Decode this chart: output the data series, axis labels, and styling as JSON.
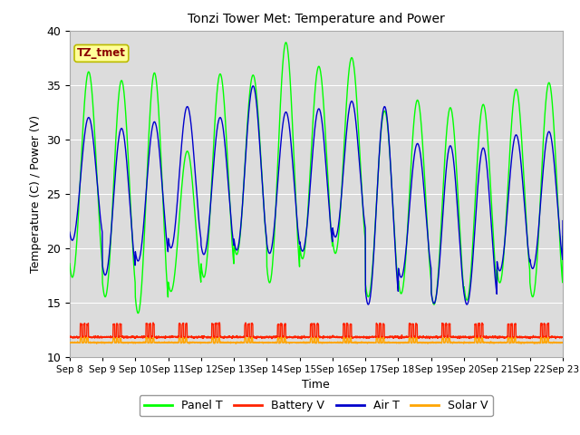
{
  "title": "Tonzi Tower Met: Temperature and Power",
  "xlabel": "Time",
  "ylabel": "Temperature (C) / Power (V)",
  "ylim": [
    10,
    40
  ],
  "annotation": "TZ_tmet",
  "annotation_color": "#8B0000",
  "annotation_bg": "#FFFF99",
  "bg_color": "#DCDCDC",
  "grid_color": "#FFFFFF",
  "series_colors": {
    "Panel T": "#00FF00",
    "Battery V": "#FF2200",
    "Air T": "#0000CC",
    "Solar V": "#FFA500"
  },
  "x_tick_labels": [
    "Sep 8",
    "Sep 9",
    "Sep 10",
    "Sep 11",
    "Sep 12",
    "Sep 13",
    "Sep 14",
    "Sep 15",
    "Sep 16",
    "Sep 17",
    "Sep 18",
    "Sep 19",
    "Sep 20",
    "Sep 21",
    "Sep 22",
    "Sep 23"
  ],
  "n_days": 16,
  "panel_t_peaks": [
    36.2,
    35.4,
    36.1,
    28.9,
    36.0,
    35.9,
    38.9,
    36.7,
    37.5,
    32.6,
    33.6,
    32.9,
    33.2,
    34.6,
    35.2,
    22.0
  ],
  "panel_t_troughs": [
    17.3,
    15.5,
    14.0,
    16.0,
    17.3,
    19.4,
    16.8,
    19.0,
    19.5,
    15.5,
    15.8,
    14.8,
    15.2,
    16.8,
    15.5,
    21.0
  ],
  "air_t_peaks": [
    32.0,
    31.0,
    31.6,
    33.0,
    32.0,
    34.9,
    32.5,
    32.8,
    33.5,
    33.0,
    29.6,
    29.4,
    29.2,
    30.4,
    30.7,
    22.5
  ],
  "air_t_troughs": [
    20.7,
    17.5,
    18.8,
    20.0,
    19.4,
    19.8,
    19.5,
    19.7,
    21.0,
    14.8,
    17.3,
    14.9,
    14.8,
    17.9,
    18.1,
    22.5
  ],
  "battery_v_base": 11.8,
  "battery_v_high": 13.0,
  "solar_v_base": 11.3,
  "solar_v_high": 11.7,
  "points_per_day": 144,
  "figsize": [
    6.4,
    4.8
  ],
  "dpi": 100
}
